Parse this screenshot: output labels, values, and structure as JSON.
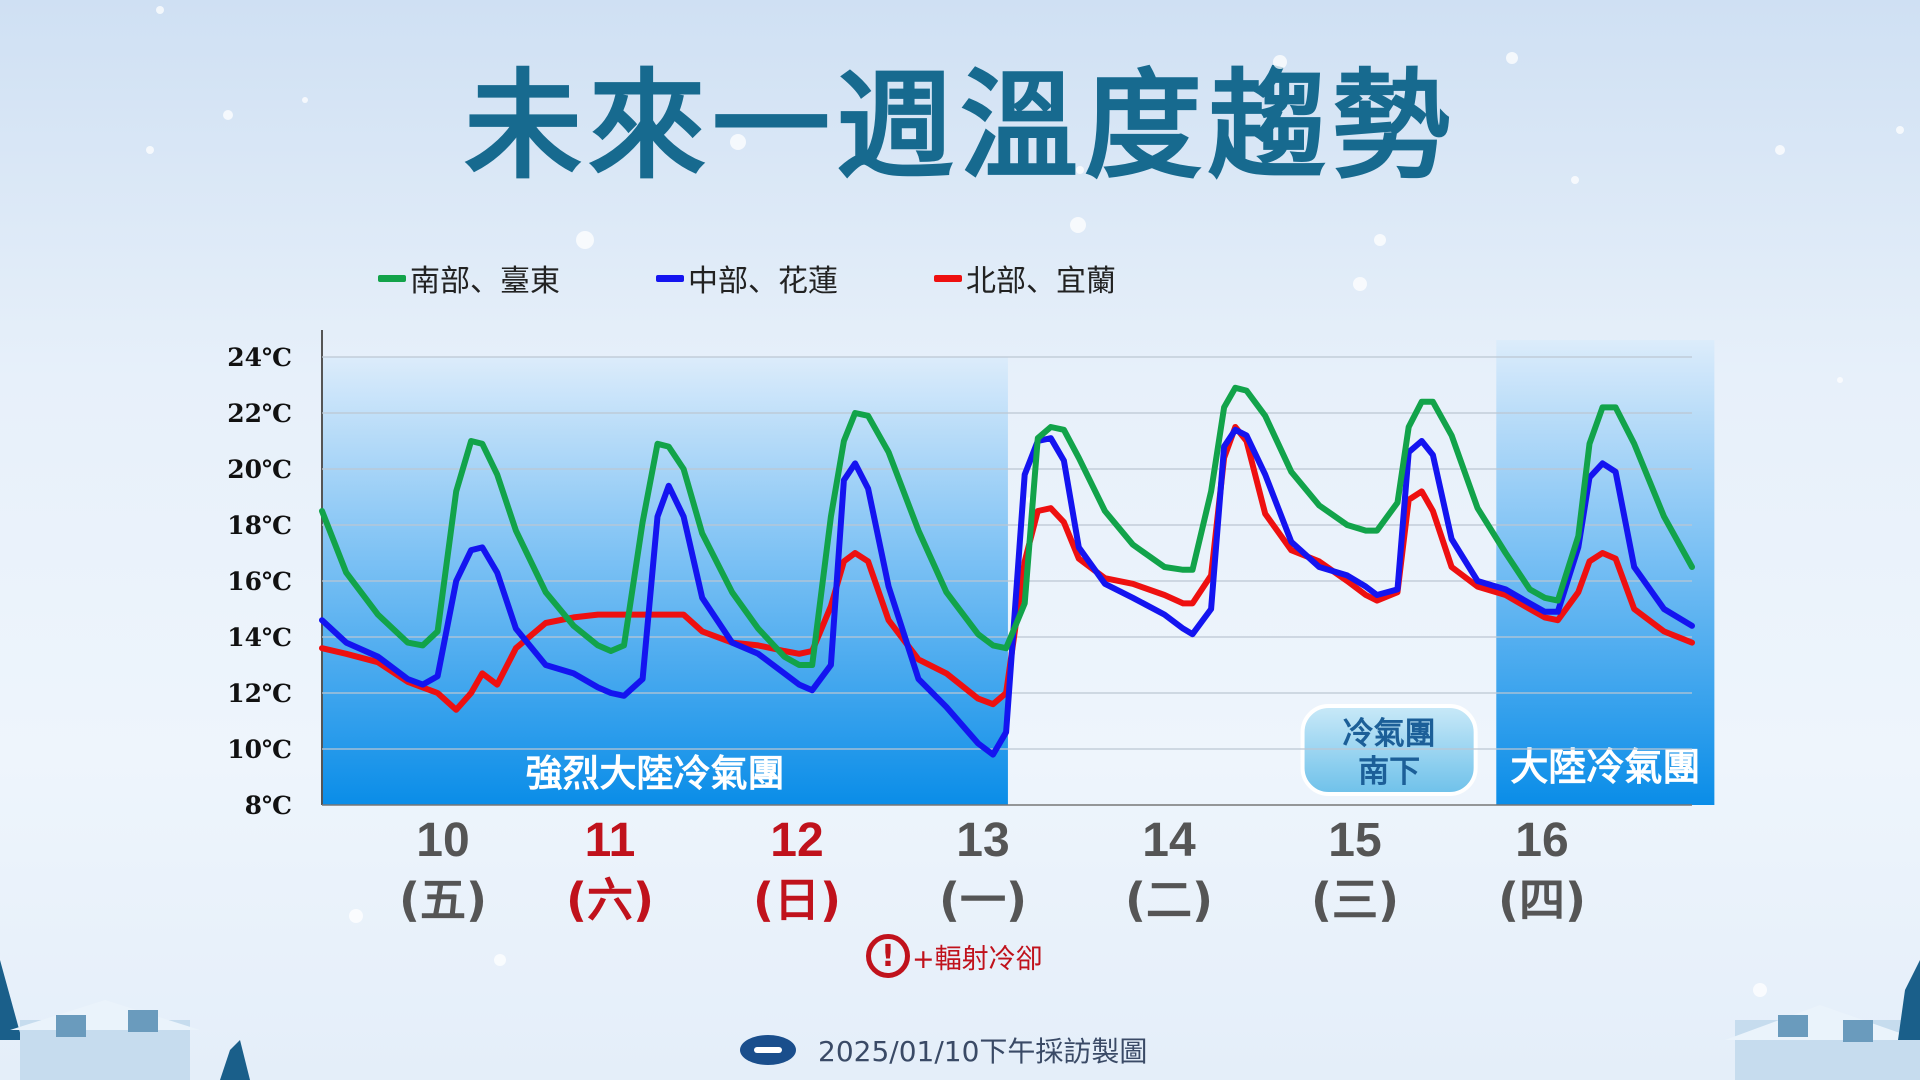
{
  "title": "未來一週溫度趨勢",
  "footer": {
    "text": "2025/01/10下午採訪製圖"
  },
  "warning": {
    "icon": "exclamation-circle-icon",
    "text": "+輻射冷卻"
  },
  "colors": {
    "south": "#12a34a",
    "central": "#1414f0",
    "north": "#ee1010",
    "title": "#176a8f",
    "weekend": "#c0121c"
  },
  "chart_data": {
    "type": "line",
    "title": "未來一週溫度趨勢",
    "y_unit": "℃",
    "ylim": [
      8,
      24
    ],
    "yticks": [
      "24℃",
      "22℃",
      "20℃",
      "18℃",
      "16℃",
      "14℃",
      "12℃",
      "10℃",
      "8℃"
    ],
    "ytick_values": [
      24,
      22,
      20,
      18,
      16,
      14,
      12,
      10,
      8
    ],
    "grid": true,
    "legend_position": "top-left",
    "x_range": [
      0,
      7.35
    ],
    "days": [
      {
        "date": "10",
        "weekday": "(五)",
        "weekend": false
      },
      {
        "date": "11",
        "weekday": "(六)",
        "weekend": true
      },
      {
        "date": "12",
        "weekday": "(日)",
        "weekend": true
      },
      {
        "date": "13",
        "weekday": "(一)",
        "weekend": false
      },
      {
        "date": "14",
        "weekday": "(二)",
        "weekend": false
      },
      {
        "date": "15",
        "weekday": "(三)",
        "weekend": false
      },
      {
        "date": "16",
        "weekday": "(四)",
        "weekend": false
      }
    ],
    "regions": [
      {
        "label": "強烈大陸冷氣團",
        "from": 0,
        "to": 3.68,
        "style": "strong"
      },
      {
        "label": "冷氣團\n南下",
        "from": 5.25,
        "to": 6.2,
        "style": "badge"
      },
      {
        "label": "大陸冷氣團",
        "from": 6.3,
        "to": 7.47,
        "style": "mild"
      }
    ],
    "series": [
      {
        "name": "南部、臺東",
        "color": "#12a34a",
        "x": [
          0,
          0.13,
          0.3,
          0.46,
          0.54,
          0.62,
          0.72,
          0.8,
          0.86,
          0.94,
          1.04,
          1.2,
          1.35,
          1.48,
          1.55,
          1.62,
          1.72,
          1.8,
          1.86,
          1.94,
          2.04,
          2.2,
          2.34,
          2.48,
          2.56,
          2.63,
          2.73,
          2.8,
          2.86,
          2.93,
          3.04,
          3.2,
          3.35,
          3.52,
          3.6,
          3.67,
          3.77,
          3.84,
          3.91,
          3.98,
          4.06,
          4.2,
          4.35,
          4.52,
          4.62,
          4.67,
          4.77,
          4.84,
          4.9,
          4.96,
          5.06,
          5.2,
          5.35,
          5.5,
          5.6,
          5.66,
          5.77,
          5.83,
          5.9,
          5.96,
          6.06,
          6.2,
          6.35,
          6.48,
          6.56,
          6.63,
          6.74,
          6.8,
          6.87,
          6.94,
          7.04,
          7.2,
          7.35
        ],
        "values": [
          18.5,
          16.3,
          14.8,
          13.8,
          13.7,
          14.2,
          19.2,
          21,
          20.9,
          19.8,
          17.8,
          15.6,
          14.4,
          13.7,
          13.5,
          13.7,
          18.1,
          20.9,
          20.8,
          20,
          17.7,
          15.6,
          14.3,
          13.3,
          13,
          13,
          18.3,
          21,
          22,
          21.9,
          20.6,
          17.8,
          15.6,
          14.1,
          13.7,
          13.6,
          15.2,
          21.1,
          21.5,
          21.4,
          20.4,
          18.5,
          17.3,
          16.5,
          16.4,
          16.4,
          19.2,
          22.2,
          22.9,
          22.8,
          21.9,
          19.9,
          18.7,
          18,
          17.8,
          17.8,
          18.8,
          21.5,
          22.4,
          22.4,
          21.2,
          18.6,
          17,
          15.7,
          15.4,
          15.3,
          17.6,
          20.9,
          22.2,
          22.2,
          20.9,
          18.3,
          16.5
        ]
      },
      {
        "name": "中部、花蓮",
        "color": "#1414f0",
        "x": [
          0,
          0.13,
          0.3,
          0.46,
          0.54,
          0.62,
          0.72,
          0.8,
          0.86,
          0.94,
          1.04,
          1.2,
          1.35,
          1.48,
          1.55,
          1.62,
          1.72,
          1.8,
          1.86,
          1.94,
          2.04,
          2.2,
          2.34,
          2.48,
          2.56,
          2.63,
          2.73,
          2.8,
          2.86,
          2.93,
          3.04,
          3.2,
          3.35,
          3.52,
          3.6,
          3.67,
          3.77,
          3.84,
          3.91,
          3.98,
          4.06,
          4.2,
          4.35,
          4.52,
          4.62,
          4.67,
          4.77,
          4.84,
          4.9,
          4.96,
          5.06,
          5.2,
          5.35,
          5.5,
          5.6,
          5.66,
          5.77,
          5.83,
          5.9,
          5.96,
          6.06,
          6.2,
          6.35,
          6.48,
          6.56,
          6.63,
          6.74,
          6.8,
          6.87,
          6.94,
          7.04,
          7.2,
          7.35
        ],
        "values": [
          14.6,
          13.8,
          13.3,
          12.5,
          12.3,
          12.6,
          16,
          17.1,
          17.2,
          16.3,
          14.3,
          13,
          12.7,
          12.2,
          12,
          11.9,
          12.5,
          18.3,
          19.4,
          18.3,
          15.4,
          13.8,
          13.4,
          12.7,
          12.3,
          12.1,
          13,
          19.6,
          20.2,
          19.3,
          15.8,
          12.5,
          11.5,
          10.2,
          9.8,
          10.6,
          19.8,
          21,
          21.1,
          20.3,
          17.2,
          15.9,
          15.4,
          14.8,
          14.3,
          14.1,
          15,
          20.8,
          21.4,
          21.2,
          19.8,
          17.4,
          16.5,
          16.2,
          15.8,
          15.5,
          15.7,
          20.6,
          21,
          20.5,
          17.5,
          16,
          15.7,
          15.2,
          14.9,
          14.9,
          17.2,
          19.7,
          20.2,
          19.9,
          16.5,
          15,
          14.4
        ]
      },
      {
        "name": "北部、宜蘭",
        "color": "#ee1010",
        "x": [
          0,
          0.13,
          0.3,
          0.46,
          0.54,
          0.62,
          0.72,
          0.8,
          0.86,
          0.94,
          1.04,
          1.2,
          1.35,
          1.48,
          1.55,
          1.62,
          1.72,
          1.8,
          1.86,
          1.94,
          2.04,
          2.2,
          2.34,
          2.48,
          2.56,
          2.63,
          2.73,
          2.8,
          2.86,
          2.93,
          3.04,
          3.2,
          3.35,
          3.52,
          3.6,
          3.67,
          3.77,
          3.84,
          3.91,
          3.98,
          4.06,
          4.2,
          4.35,
          4.52,
          4.62,
          4.67,
          4.77,
          4.84,
          4.9,
          4.96,
          5.06,
          5.2,
          5.35,
          5.5,
          5.6,
          5.66,
          5.77,
          5.83,
          5.9,
          5.96,
          6.06,
          6.2,
          6.35,
          6.48,
          6.56,
          6.63,
          6.74,
          6.8,
          6.87,
          6.94,
          7.04,
          7.2,
          7.35
        ],
        "values": [
          13.6,
          13.4,
          13.1,
          12.4,
          12.2,
          12,
          11.4,
          12,
          12.7,
          12.3,
          13.6,
          14.5,
          14.7,
          14.8,
          14.8,
          14.8,
          14.8,
          14.8,
          14.8,
          14.8,
          14.2,
          13.8,
          13.7,
          13.5,
          13.4,
          13.5,
          15.1,
          16.7,
          17,
          16.7,
          14.6,
          13.2,
          12.7,
          11.8,
          11.6,
          12,
          16.7,
          18.5,
          18.6,
          18.1,
          16.8,
          16.1,
          15.9,
          15.5,
          15.2,
          15.2,
          16.2,
          20.4,
          21.5,
          21,
          18.4,
          17.1,
          16.7,
          16,
          15.5,
          15.3,
          15.6,
          18.9,
          19.2,
          18.5,
          16.5,
          15.8,
          15.5,
          15,
          14.7,
          14.6,
          15.6,
          16.7,
          17,
          16.8,
          15,
          14.2,
          13.8
        ]
      }
    ]
  }
}
